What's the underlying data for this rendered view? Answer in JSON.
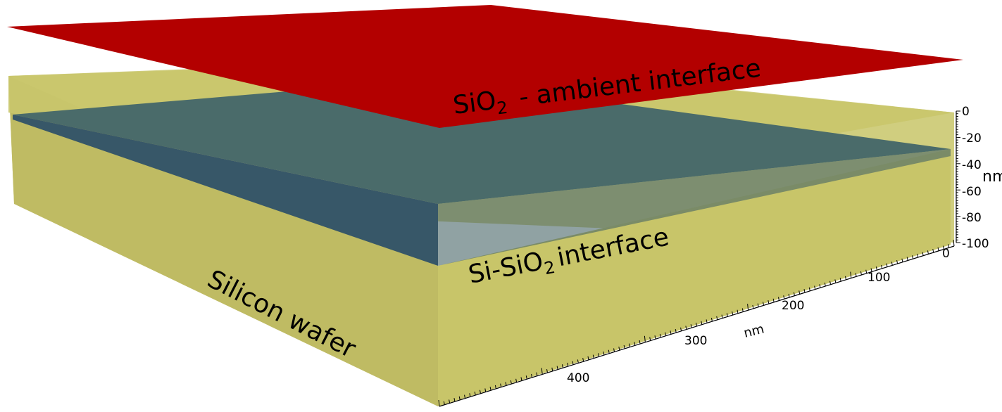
{
  "labels": {
    "top_interface_main": "SiO",
    "top_interface_sub": "2",
    "top_interface_rest": "- ambient interface",
    "mid_interface_pre": "Si-SiO",
    "mid_interface_sub": "2",
    "mid_interface_rest": "interface",
    "wafer": "Silicon wafer"
  },
  "axes": {
    "z_ticks": [
      "0",
      "-20",
      "-40",
      "-60",
      "-80",
      "-100"
    ],
    "z_unit": "nm",
    "x_ticks": [
      "0",
      "100",
      "200",
      "300",
      "400"
    ],
    "x_unit": "nm"
  },
  "colors": {
    "ambient_plane": "#b30000",
    "oxide_layer": "#3d5f6a",
    "silicon": "#c8c569"
  }
}
